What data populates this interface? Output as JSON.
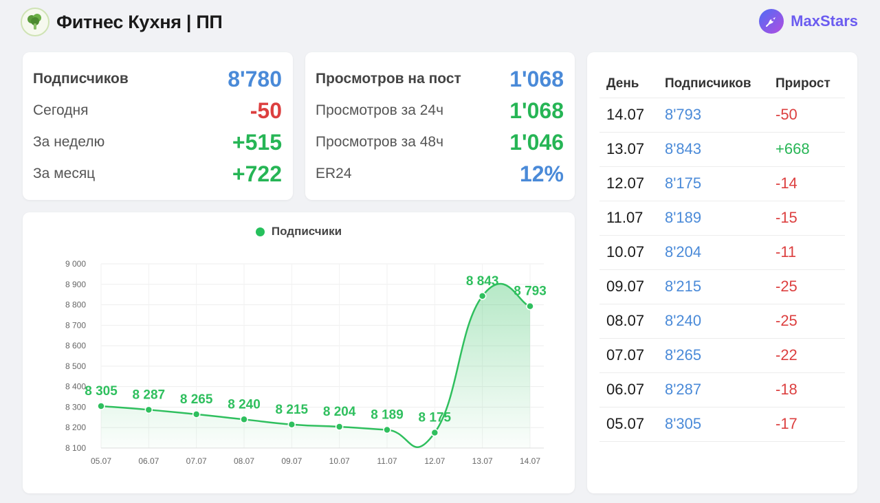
{
  "header": {
    "title": "Фитнес Кухня | ПП",
    "logo_icon": "broccoli-icon",
    "brand": "MaxStars",
    "brand_icon": "rocket-icon"
  },
  "colors": {
    "blue": "#4a8ad8",
    "green": "#26b555",
    "red": "#dc3f3f",
    "line": "#2fbf5e"
  },
  "subscribers_card": {
    "rows": [
      {
        "label": "Подписчиков",
        "value": "8'780",
        "color": "blue"
      },
      {
        "label": "Сегодня",
        "value": "-50",
        "color": "red"
      },
      {
        "label": "За неделю",
        "value": "+515",
        "color": "green"
      },
      {
        "label": "За месяц",
        "value": "+722",
        "color": "green"
      }
    ]
  },
  "views_card": {
    "rows": [
      {
        "label": "Просмотров на пост",
        "value": "1'068",
        "color": "blue"
      },
      {
        "label": "Просмотров за 24ч",
        "value": "1'068",
        "color": "green"
      },
      {
        "label": "Просмотров за 48ч",
        "value": "1'046",
        "color": "green"
      },
      {
        "label": "ER24",
        "value": "12%",
        "color": "blue"
      }
    ]
  },
  "table": {
    "headers": {
      "day": "День",
      "subs": "Подписчиков",
      "growth": "Прирост"
    },
    "rows": [
      {
        "day": "14.07",
        "subs": "8'793",
        "growth": "-50"
      },
      {
        "day": "13.07",
        "subs": "8'843",
        "growth": "+668"
      },
      {
        "day": "12.07",
        "subs": "8'175",
        "growth": "-14"
      },
      {
        "day": "11.07",
        "subs": "8'189",
        "growth": "-15"
      },
      {
        "day": "10.07",
        "subs": "8'204",
        "growth": "-11"
      },
      {
        "day": "09.07",
        "subs": "8'215",
        "growth": "-25"
      },
      {
        "day": "08.07",
        "subs": "8'240",
        "growth": "-25"
      },
      {
        "day": "07.07",
        "subs": "8'265",
        "growth": "-22"
      },
      {
        "day": "06.07",
        "subs": "8'287",
        "growth": "-18"
      },
      {
        "day": "05.07",
        "subs": "8'305",
        "growth": "-17"
      }
    ]
  },
  "chart_data": {
    "type": "area",
    "title": "",
    "xlabel": "",
    "ylabel": "",
    "legend": "top-center",
    "grid": true,
    "categories": [
      "05.07",
      "06.07",
      "07.07",
      "08.07",
      "09.07",
      "10.07",
      "11.07",
      "12.07",
      "13.07",
      "14.07"
    ],
    "series": [
      {
        "name": "Подписчики",
        "values": [
          8305,
          8287,
          8265,
          8240,
          8215,
          8204,
          8189,
          8175,
          8843,
          8793
        ],
        "labels": [
          "8 305",
          "8 287",
          "8 265",
          "8 240",
          "8 215",
          "8 204",
          "8 189",
          "8 175",
          "8 843",
          "8 793"
        ]
      }
    ],
    "ylim": [
      8100,
      9000
    ],
    "yticks": [
      8100,
      8200,
      8300,
      8400,
      8500,
      8600,
      8700,
      8800,
      8900,
      9000
    ],
    "ytick_labels": [
      "8 100",
      "8 200",
      "8 300",
      "8 400",
      "8 500",
      "8 600",
      "8 700",
      "8 800",
      "8 900",
      "9 000"
    ]
  }
}
